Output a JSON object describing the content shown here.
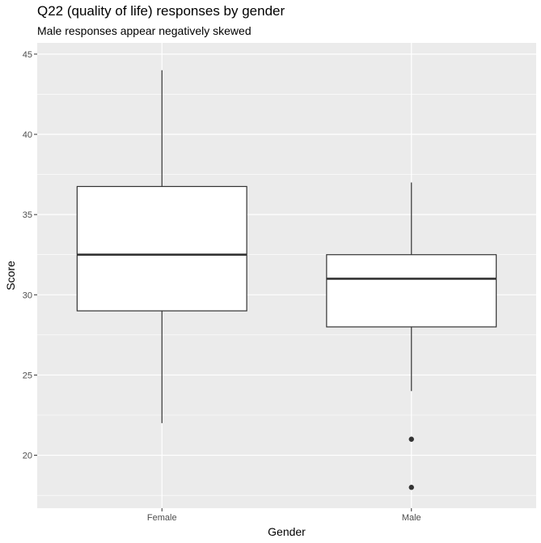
{
  "chart_data": {
    "type": "boxplot",
    "title": "Q22 (quality of life) responses by gender",
    "subtitle": "Male responses appear negatively skewed",
    "xlabel": "Gender",
    "ylabel": "Score",
    "ylim": [
      16.7,
      45.7
    ],
    "y_ticks": [
      20,
      25,
      30,
      35,
      40,
      45
    ],
    "categories": [
      "Female",
      "Male"
    ],
    "boxes": [
      {
        "category": "Female",
        "whisker_low": 22,
        "q1": 29,
        "median": 32.5,
        "q3": 36.75,
        "whisker_high": 44,
        "outliers": []
      },
      {
        "category": "Male",
        "whisker_low": 24,
        "q1": 28,
        "median": 31,
        "q3": 32.5,
        "whisker_high": 37,
        "outliers": [
          21,
          18
        ]
      }
    ],
    "grid": true,
    "legend": "none",
    "colors": {
      "panel": "#ebebeb",
      "grid": "#ffffff",
      "box_fill": "#ffffff",
      "box_line": "#333333",
      "tick_label": "#4d4d4d"
    }
  }
}
